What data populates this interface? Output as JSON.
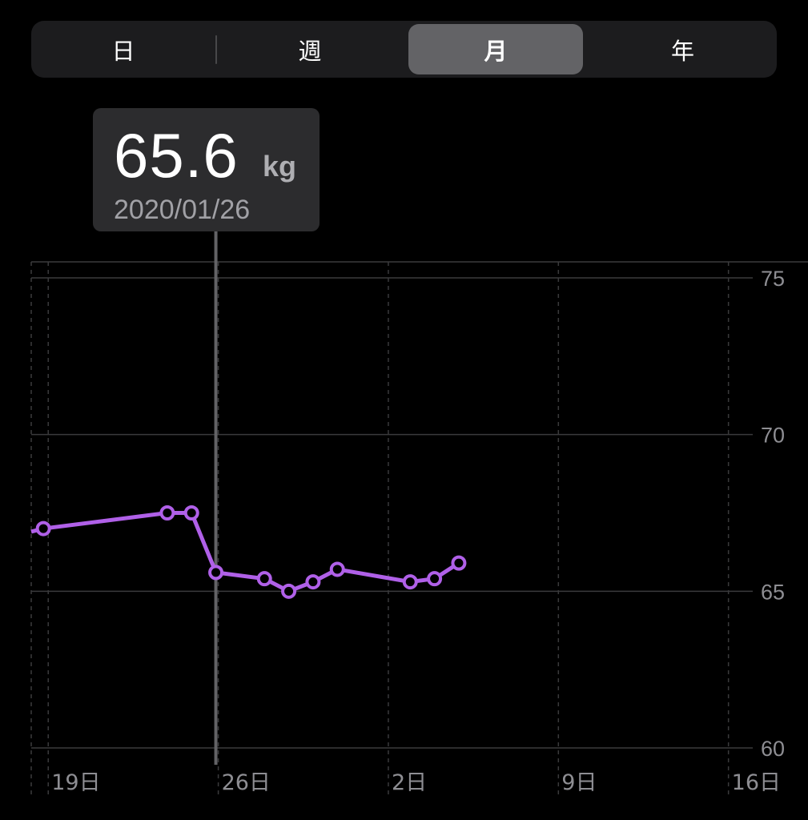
{
  "segmented_control": {
    "options": [
      "日",
      "週",
      "月",
      "年"
    ],
    "selected": "月"
  },
  "tooltip": {
    "value": "65.6",
    "unit": "kg",
    "date": "2020/01/26"
  },
  "colors": {
    "line": "#b060e8",
    "background": "#000000",
    "selected_segment": "#636366"
  },
  "chart_data": {
    "type": "line",
    "title": "",
    "xlabel": "",
    "ylabel": "",
    "x_tick_labels": [
      "19日",
      "26日",
      "2日",
      "9日",
      "16日"
    ],
    "y_tick_labels": [
      "75",
      "70",
      "65",
      "60"
    ],
    "ylim": [
      60,
      75
    ],
    "y_axis_side": "right",
    "x_range_days": [
      18.3,
      48
    ],
    "x_tick_days": [
      19,
      26,
      33,
      40,
      47
    ],
    "series": [
      {
        "x_days": [
          18.3,
          18.8,
          23.9,
          24.9,
          25.9,
          27.9,
          28.9,
          29.9,
          30.9,
          33.9,
          34.9,
          35.9
        ],
        "values": [
          66.9,
          67.0,
          67.5,
          67.5,
          65.6,
          65.4,
          65.0,
          65.3,
          65.7,
          65.3,
          65.4,
          65.9
        ]
      }
    ],
    "selected_point": {
      "x_day": 25.9,
      "value": 65.6
    }
  }
}
